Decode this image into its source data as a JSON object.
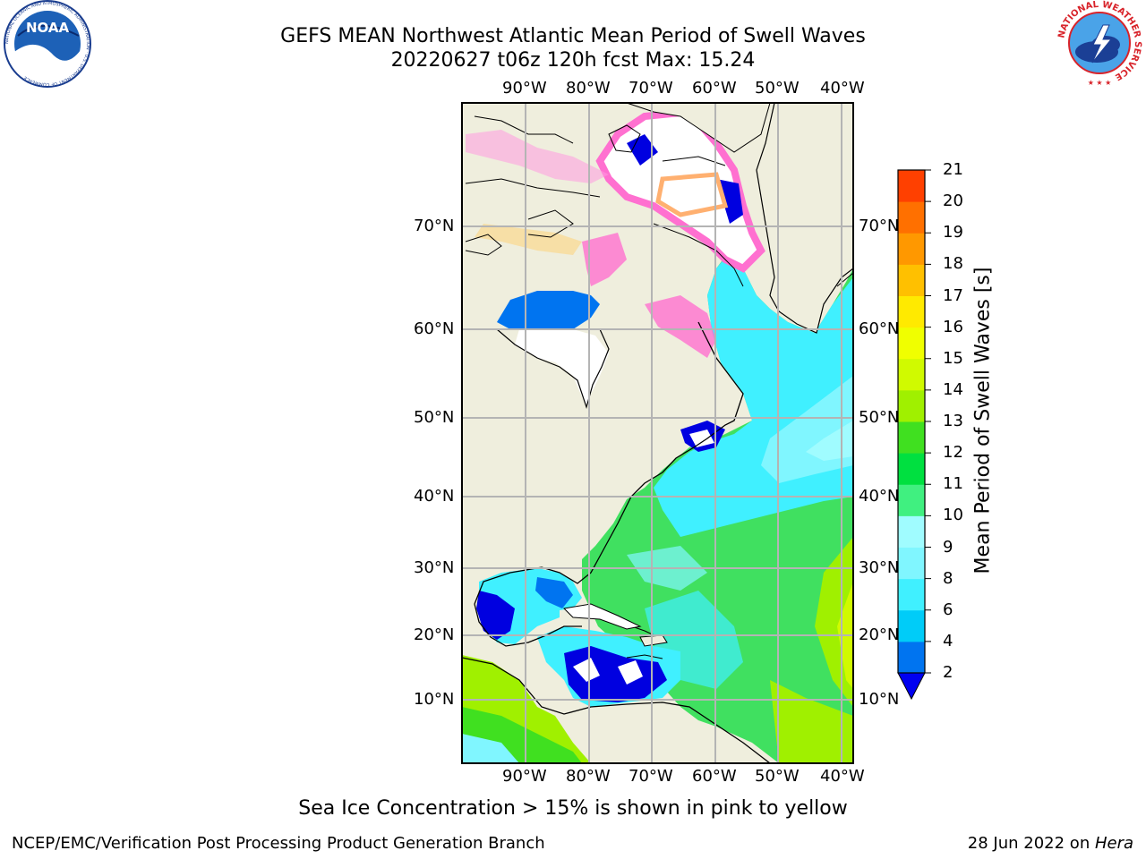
{
  "header": {
    "title_line1": "GEFS MEAN Northwest Atlantic Mean Period of Swell Waves",
    "title_line2": "20220627 t06z 120h fcst   Max: 15.24"
  },
  "logos": {
    "noaa_text": "NOAA",
    "noaa_ring": "NATIONAL OCEANIC AND ATMOSPHERIC ADMINISTRATION · U.S. DEPARTMENT OF COMMERCE",
    "nws_ring": "NATIONAL WEATHER SERVICE"
  },
  "map": {
    "lon_labels": [
      "90°W",
      "80°W",
      "70°W",
      "60°W",
      "50°W",
      "40°W"
    ],
    "lat_labels": [
      "70°N",
      "60°N",
      "50°N",
      "40°N",
      "30°N",
      "20°N",
      "10°N"
    ],
    "colors": {
      "land": "#efeedd",
      "grid": "#b4b4b4"
    }
  },
  "colorbar": {
    "label": "Mean Period of Swell Waves [s]",
    "ticks": [
      "2",
      "4",
      "6",
      "8",
      "9",
      "10",
      "11",
      "12",
      "13",
      "14",
      "15",
      "16",
      "17",
      "18",
      "19",
      "20",
      "21"
    ],
    "colors": [
      "#0074f0",
      "#00ccf8",
      "#40f0ff",
      "#80f6ff",
      "#a0fcff",
      "#40f080",
      "#00e040",
      "#40e020",
      "#a0f000",
      "#d0fa00",
      "#f0ff00",
      "#ffea00",
      "#ffc000",
      "#ff9800",
      "#ff7000",
      "#ff4000"
    ],
    "under_color": "#0000f0"
  },
  "notes": {
    "ice": "Sea Ice Concentration > 15% is shown in pink to yellow",
    "credit": "NCEP/EMC/Verification Post Processing Product Generation Branch",
    "date": "28 Jun 2022 on ",
    "machine": "Hera"
  }
}
